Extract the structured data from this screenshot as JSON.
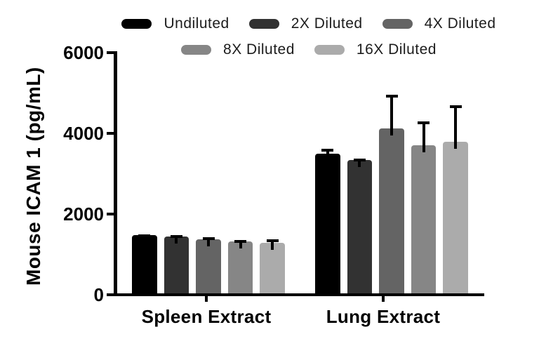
{
  "chart_data": {
    "type": "bar",
    "title": "",
    "ylabel": "Mouse ICAM 1 (pg/mL)",
    "xlabel": "",
    "ylim": [
      0,
      6000
    ],
    "yticks": [
      6000,
      4000,
      2000,
      0
    ],
    "grid": false,
    "legend_position": "top",
    "categories": [
      "Spleen Extract",
      "Lung Extract"
    ],
    "series": [
      {
        "name": "Undiluted",
        "color": "#000000",
        "values": [
          1470,
          3500
        ],
        "errors": [
          20,
          110
        ]
      },
      {
        "name": "2X Diluted",
        "color": "#323232",
        "values": [
          1440,
          3340
        ],
        "errors": [
          35,
          40
        ]
      },
      {
        "name": "4X Diluted",
        "color": "#646464",
        "values": [
          1380,
          4130
        ],
        "errors": [
          40,
          830
        ]
      },
      {
        "name": "8X Diluted",
        "color": "#868686",
        "values": [
          1315,
          3710
        ],
        "errors": [
          45,
          590
        ]
      },
      {
        "name": "16X Diluted",
        "color": "#ababab",
        "values": [
          1290,
          3800
        ],
        "errors": [
          85,
          900
        ]
      }
    ]
  }
}
